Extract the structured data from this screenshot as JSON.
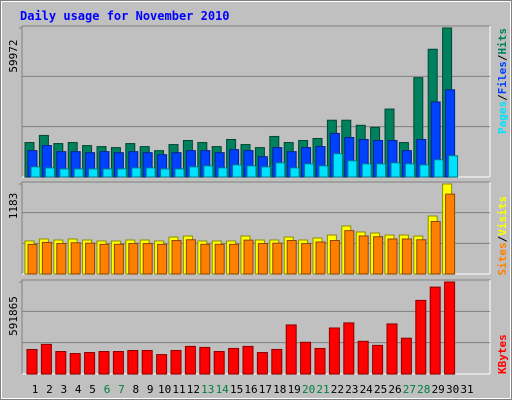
{
  "chart_data": [
    {
      "type": "bar",
      "title": "Daily usage for November 2010",
      "legend_separator": "/",
      "ylim": [
        0,
        59972
      ],
      "yticks": [
        59972
      ],
      "series": [
        {
          "name": "Hits",
          "color": "#00805c",
          "values": [
            13870,
            16730,
            13460,
            13870,
            12650,
            12240,
            11830,
            13460,
            12240,
            10610,
            13060,
            14690,
            13870,
            12240,
            15100,
            13060,
            11830,
            16320,
            13870,
            14690,
            15500,
            22850,
            22850,
            20810,
            19990,
            27340,
            13870,
            39990,
            51410,
            59972,
            0
          ]
        },
        {
          "name": "Files",
          "color": "#0040ff",
          "values": [
            10610,
            12650,
            10200,
            10200,
            9790,
            10200,
            9790,
            10200,
            9790,
            8980,
            9790,
            10610,
            10610,
            9790,
            11020,
            10610,
            8160,
            11830,
            10200,
            11830,
            12240,
            17540,
            15910,
            15100,
            14690,
            14690,
            10610,
            15100,
            30190,
            35090,
            0
          ]
        },
        {
          "name": "Pages",
          "color": "#00e0ff",
          "values": [
            4080,
            3670,
            3260,
            3260,
            3260,
            3260,
            3260,
            3670,
            3670,
            3260,
            3260,
            4080,
            4490,
            3670,
            4900,
            4490,
            4080,
            5710,
            3670,
            5300,
            4490,
            9380,
            6530,
            5300,
            5300,
            5710,
            5300,
            4900,
            6940,
            8570,
            0
          ]
        }
      ]
    },
    {
      "type": "bar",
      "legend_separator": "/",
      "ylim": [
        0,
        1183
      ],
      "yticks": [
        1183
      ],
      "series": [
        {
          "name": "Visits",
          "color": "#ffff00",
          "values": [
            434,
            460,
            447,
            460,
            447,
            434,
            434,
            447,
            447,
            434,
            486,
            499,
            434,
            434,
            434,
            499,
            447,
            447,
            486,
            447,
            473,
            512,
            631,
            552,
            539,
            512,
            512,
            499,
            762,
            1183,
            0
          ]
        },
        {
          "name": "Sites",
          "color": "#ff8000",
          "values": [
            390,
            415,
            400,
            410,
            405,
            390,
            390,
            400,
            400,
            390,
            440,
            450,
            390,
            390,
            390,
            445,
            400,
            405,
            440,
            400,
            420,
            440,
            570,
            500,
            490,
            460,
            460,
            450,
            690,
            1050,
            0
          ]
        }
      ]
    },
    {
      "type": "bar",
      "ylim": [
        0,
        591865
      ],
      "yticks": [
        591865
      ],
      "categories": [
        "1",
        "2",
        "3",
        "4",
        "5",
        "6",
        "7",
        "8",
        "9",
        "10",
        "11",
        "12",
        "13",
        "14",
        "15",
        "16",
        "17",
        "18",
        "19",
        "20",
        "21",
        "22",
        "23",
        "24",
        "25",
        "26",
        "27",
        "28",
        "29",
        "30",
        "31"
      ],
      "weekend": [
        "6",
        "7",
        "13",
        "14",
        "20",
        "21",
        "27",
        "28"
      ],
      "label_colors": {
        "weekday": "#000000",
        "weekend": "#008040"
      },
      "series": [
        {
          "name": "KBytes",
          "color": "#ff0000",
          "values": [
            157800,
            190700,
            144700,
            131500,
            138100,
            144700,
            144700,
            151200,
            151200,
            124900,
            151200,
            177600,
            171000,
            144700,
            164400,
            177600,
            138100,
            157800,
            315600,
            203900,
            164400,
            295900,
            328800,
            210400,
            184100,
            322200,
            230200,
            473500,
            559000,
            591865,
            0
          ]
        }
      ]
    }
  ]
}
